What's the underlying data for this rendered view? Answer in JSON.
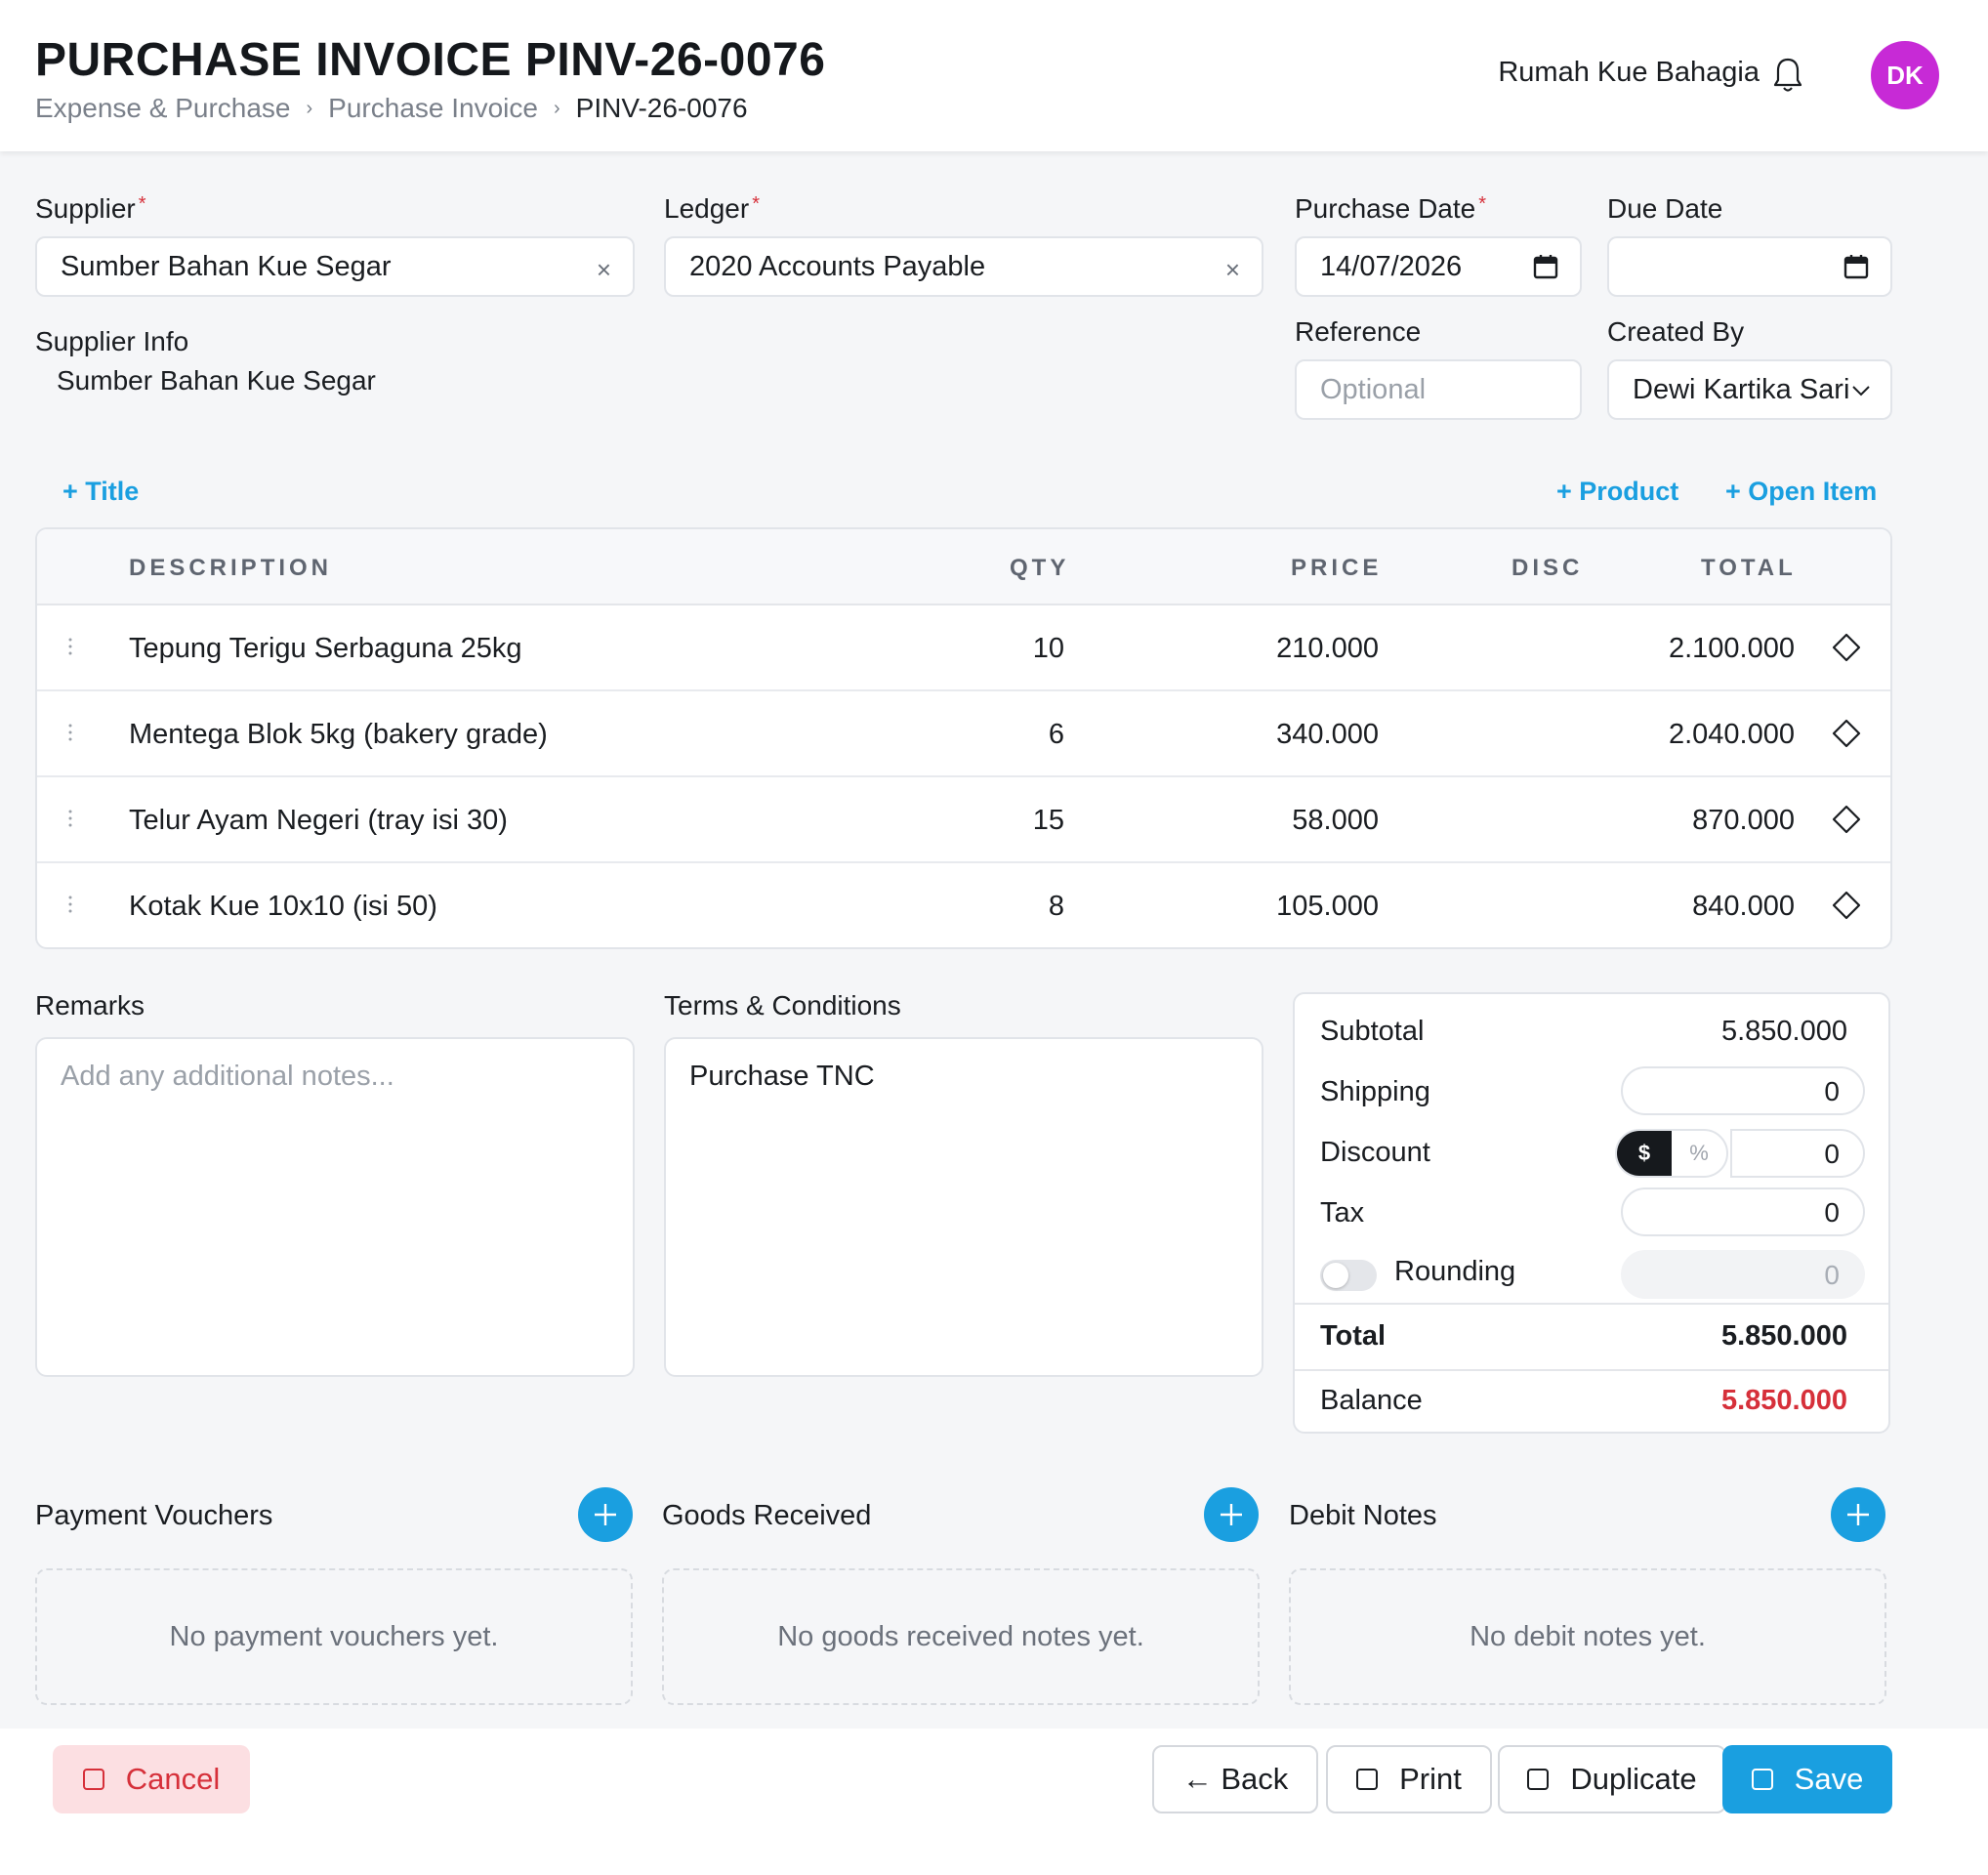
{
  "header": {
    "title": "PURCHASE INVOICE PINV-26-0076",
    "breadcrumb": [
      "Expense & Purchase",
      "Purchase Invoice",
      "PINV-26-0076"
    ],
    "company": "Rumah Kue Bahagia",
    "avatar_initials": "DK",
    "avatar_color": "#c72ad6"
  },
  "form": {
    "supplier_label": "Supplier",
    "supplier_value": "Sumber Bahan Kue Segar",
    "ledger_label": "Ledger",
    "ledger_value": "2020 Accounts Payable",
    "purchase_date_label": "Purchase Date",
    "purchase_date_value": "14/07/2026",
    "due_date_label": "Due Date",
    "due_date_value": "",
    "supplier_info_label": "Supplier Info",
    "supplier_info_value": "Sumber Bahan Kue Segar",
    "reference_label": "Reference",
    "reference_placeholder": "Optional",
    "created_by_label": "Created By",
    "created_by_value": "Dewi Kartika Sari",
    "required_mark": "*",
    "clear_glyph": "×"
  },
  "actions": {
    "add_title": "+ Title",
    "add_product": "+ Product",
    "add_open_item": "+ Open Item"
  },
  "table": {
    "headers": {
      "description": "DESCRIPTION",
      "qty": "QTY",
      "price": "PRICE",
      "disc": "DISC",
      "total": "TOTAL"
    },
    "rows": [
      {
        "description": "Tepung Terigu Serbaguna 25kg",
        "qty": "10",
        "price": "210.000",
        "disc": "",
        "total": "2.100.000"
      },
      {
        "description": "Mentega Blok 5kg (bakery grade)",
        "qty": "6",
        "price": "340.000",
        "disc": "",
        "total": "2.040.000"
      },
      {
        "description": "Telur Ayam Negeri (tray isi 30)",
        "qty": "15",
        "price": "58.000",
        "disc": "",
        "total": "870.000"
      },
      {
        "description": "Kotak Kue 10x10 (isi 50)",
        "qty": "8",
        "price": "105.000",
        "disc": "",
        "total": "840.000"
      }
    ]
  },
  "remarks": {
    "label": "Remarks",
    "placeholder": "Add any additional notes..."
  },
  "terms": {
    "label": "Terms & Conditions",
    "value": "Purchase TNC"
  },
  "summary": {
    "subtotal_label": "Subtotal",
    "subtotal_value": "5.850.000",
    "shipping_label": "Shipping",
    "shipping_value": "0",
    "discount_label": "Discount",
    "discount_mode_amount": "$",
    "discount_mode_percent": "%",
    "discount_value": "0",
    "tax_label": "Tax",
    "tax_value": "0",
    "rounding_label": "Rounding",
    "rounding_value": "0",
    "rounding_enabled": false,
    "total_label": "Total",
    "total_value": "5.850.000",
    "balance_label": "Balance",
    "balance_value": "5.850.000",
    "balance_color": "#d6303a"
  },
  "related": {
    "payment_vouchers": {
      "title": "Payment Vouchers",
      "empty": "No payment vouchers yet."
    },
    "goods_received": {
      "title": "Goods Received",
      "empty": "No goods received notes yet."
    },
    "debit_notes": {
      "title": "Debit Notes",
      "empty": "No debit notes yet."
    }
  },
  "footer": {
    "cancel": "Cancel",
    "back": "← Back",
    "print": "Print",
    "duplicate": "Duplicate",
    "save": "Save"
  },
  "colors": {
    "accent": "#1a9fe0",
    "danger": "#d6303a"
  }
}
